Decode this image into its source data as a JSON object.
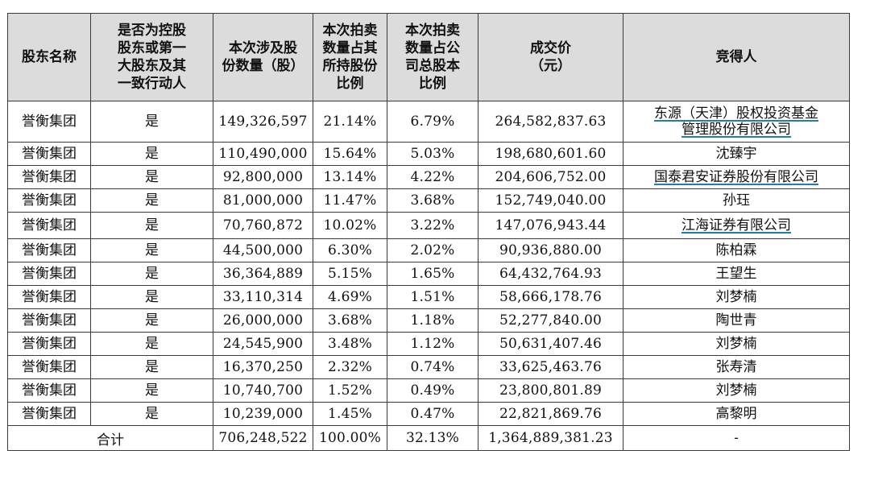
{
  "headers": {
    "shareholder": "股东名称",
    "controlling": [
      "是否为控股",
      "股东或第一",
      "大股东及其",
      "一致行动人"
    ],
    "shares": [
      "本次涉及股",
      "份数量（股）"
    ],
    "pct_held": [
      "本次拍卖",
      "数量占其",
      "所持股份",
      "比例"
    ],
    "pct_total": [
      "本次拍卖",
      "数量占公",
      "司总股本",
      "比例"
    ],
    "price": [
      "成交价",
      "（元）"
    ],
    "winner": "竞得人"
  },
  "rows": [
    {
      "shareholder": "誉衡集团",
      "controlling": "是",
      "shares": "149,326,597",
      "pct_held": "21.14%",
      "pct_total": "6.79%",
      "price": "264,582,837.63",
      "winner": "东源（天津）股权投资基金管理股份有限公司",
      "winner_lines": [
        "东源（天津）股权投资基金",
        "管理股份有限公司"
      ],
      "winner_linked": true
    },
    {
      "shareholder": "誉衡集团",
      "controlling": "是",
      "shares": "110,490,000",
      "pct_held": "15.64%",
      "pct_total": "5.03%",
      "price": "198,680,601.60",
      "winner": "沈臻宇",
      "winner_linked": false
    },
    {
      "shareholder": "誉衡集团",
      "controlling": "是",
      "shares": "92,800,000",
      "pct_held": "13.14%",
      "pct_total": "4.22%",
      "price": "204,606,752.00",
      "winner": "国泰君安证券股份有限公司",
      "winner_linked": true
    },
    {
      "shareholder": "誉衡集团",
      "controlling": "是",
      "shares": "81,000,000",
      "pct_held": "11.47%",
      "pct_total": "3.68%",
      "price": "152,749,040.00",
      "winner": "孙珏",
      "winner_linked": false
    },
    {
      "shareholder": "誉衡集团",
      "controlling": "是",
      "shares": "70,760,872",
      "pct_held": "10.02%",
      "pct_total": "3.22%",
      "price": "147,076,943.44",
      "winner": "江海证券有限公司",
      "winner_linked": true
    },
    {
      "shareholder": "誉衡集团",
      "controlling": "是",
      "shares": "44,500,000",
      "pct_held": "6.30%",
      "pct_total": "2.02%",
      "price": "90,936,880.00",
      "winner": "陈柏霖",
      "winner_linked": false
    },
    {
      "shareholder": "誉衡集团",
      "controlling": "是",
      "shares": "36,364,889",
      "pct_held": "5.15%",
      "pct_total": "1.65%",
      "price": "64,432,764.93",
      "winner": "王望生",
      "winner_linked": false
    },
    {
      "shareholder": "誉衡集团",
      "controlling": "是",
      "shares": "33,110,314",
      "pct_held": "4.69%",
      "pct_total": "1.51%",
      "price": "58,666,178.76",
      "winner": "刘梦楠",
      "winner_linked": false
    },
    {
      "shareholder": "誉衡集团",
      "controlling": "是",
      "shares": "26,000,000",
      "pct_held": "3.68%",
      "pct_total": "1.18%",
      "price": "52,277,840.00",
      "winner": "陶世青",
      "winner_linked": false
    },
    {
      "shareholder": "誉衡集团",
      "controlling": "是",
      "shares": "24,545,900",
      "pct_held": "3.48%",
      "pct_total": "1.12%",
      "price": "50,631,407.46",
      "winner": "刘梦楠",
      "winner_linked": false
    },
    {
      "shareholder": "誉衡集团",
      "controlling": "是",
      "shares": "16,370,250",
      "pct_held": "2.32%",
      "pct_total": "0.74%",
      "price": "33,625,463.76",
      "winner": "张寿清",
      "winner_linked": false
    },
    {
      "shareholder": "誉衡集团",
      "controlling": "是",
      "shares": "10,740,700",
      "pct_held": "1.52%",
      "pct_total": "0.49%",
      "price": "23,800,801.89",
      "winner": "刘梦楠",
      "winner_linked": false
    },
    {
      "shareholder": "誉衡集团",
      "controlling": "是",
      "shares": "10,239,000",
      "pct_held": "1.45%",
      "pct_total": "0.47%",
      "price": "22,821,869.76",
      "winner": "高黎明",
      "winner_linked": false
    }
  ],
  "total": {
    "label": "合计",
    "shares": "706,248,522",
    "pct_held": "100.00%",
    "pct_total": "32.13%",
    "price": "1,364,889,381.23",
    "winner": "-"
  },
  "colors": {
    "header_bg": "#dcdcdc",
    "link_underline": "#1f7fa8",
    "border": "#3a3a3a"
  }
}
